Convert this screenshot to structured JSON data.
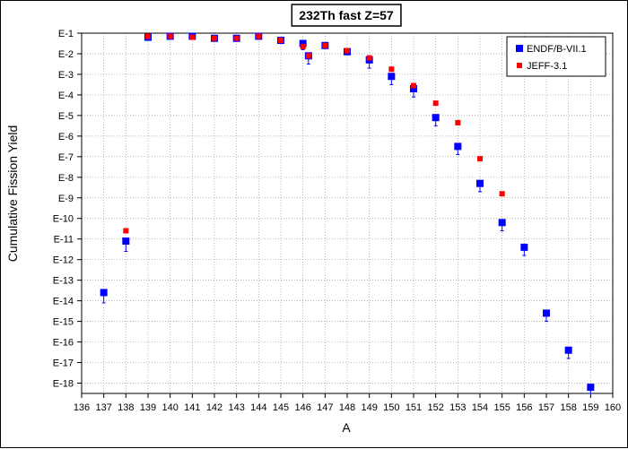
{
  "chart_data": {
    "type": "scatter",
    "title": "232Th fast Z=57",
    "xlabel": "A",
    "ylabel": "Cumulative Fission Yield",
    "xlim": [
      136,
      160
    ],
    "ylim_exponent": [
      -18.5,
      -1
    ],
    "y_scale": "log10",
    "x_ticks": [
      136,
      137,
      138,
      139,
      140,
      141,
      142,
      143,
      144,
      145,
      146,
      147,
      148,
      149,
      150,
      151,
      152,
      153,
      154,
      155,
      156,
      157,
      158,
      159,
      160
    ],
    "y_ticks": [
      {
        "exp": -1,
        "label": "E-1"
      },
      {
        "exp": -2,
        "label": "E-2"
      },
      {
        "exp": -3,
        "label": "E-3"
      },
      {
        "exp": -4,
        "label": "E-4"
      },
      {
        "exp": -5,
        "label": "E-5"
      },
      {
        "exp": -6,
        "label": "E-6"
      },
      {
        "exp": -7,
        "label": "E-7"
      },
      {
        "exp": -8,
        "label": "E-8"
      },
      {
        "exp": -9,
        "label": "E-9"
      },
      {
        "exp": -10,
        "label": "E-10"
      },
      {
        "exp": -11,
        "label": "E-11"
      },
      {
        "exp": -12,
        "label": "E-12"
      },
      {
        "exp": -13,
        "label": "E-13"
      },
      {
        "exp": -14,
        "label": "E-14"
      },
      {
        "exp": -15,
        "label": "E-15"
      },
      {
        "exp": -16,
        "label": "E-16"
      },
      {
        "exp": -17,
        "label": "E-17"
      },
      {
        "exp": -18,
        "label": "E-18"
      }
    ],
    "grid": true,
    "legend_position": "top-right",
    "series": [
      {
        "name": "ENDF/B-VII.1",
        "color": "#0000ff",
        "marker": "square",
        "points": [
          {
            "x": 137,
            "y_exp": -13.6,
            "err_exp": 0.5
          },
          {
            "x": 138,
            "y_exp": -11.1,
            "err_exp": 0.5
          },
          {
            "x": 139,
            "y_exp": -1.2,
            "err_exp": 0.1
          },
          {
            "x": 140,
            "y_exp": -1.15,
            "err_exp": 0.1
          },
          {
            "x": 141,
            "y_exp": -1.15,
            "err_exp": 0.1
          },
          {
            "x": 142,
            "y_exp": -1.25,
            "err_exp": 0.1
          },
          {
            "x": 143,
            "y_exp": -1.25,
            "err_exp": 0.1
          },
          {
            "x": 144,
            "y_exp": -1.15,
            "err_exp": 0.1
          },
          {
            "x": 145,
            "y_exp": -1.35,
            "err_exp": 0.1
          },
          {
            "x": 146,
            "y_exp": -1.5,
            "err_exp": 0.3
          },
          {
            "x": 146.25,
            "y_exp": -2.1,
            "err_exp": 0.4
          },
          {
            "x": 147,
            "y_exp": -1.6,
            "err_exp": 0.1
          },
          {
            "x": 148,
            "y_exp": -1.9,
            "err_exp": 0.15
          },
          {
            "x": 149,
            "y_exp": -2.3,
            "err_exp": 0.4
          },
          {
            "x": 150,
            "y_exp": -3.1,
            "err_exp": 0.4
          },
          {
            "x": 151,
            "y_exp": -3.7,
            "err_exp": 0.4
          },
          {
            "x": 152,
            "y_exp": -5.1,
            "err_exp": 0.4
          },
          {
            "x": 153,
            "y_exp": -6.5,
            "err_exp": 0.4
          },
          {
            "x": 154,
            "y_exp": -8.3,
            "err_exp": 0.4
          },
          {
            "x": 155,
            "y_exp": -10.2,
            "err_exp": 0.4
          },
          {
            "x": 156,
            "y_exp": -11.4,
            "err_exp": 0.4
          },
          {
            "x": 157,
            "y_exp": -14.6,
            "err_exp": 0.4
          },
          {
            "x": 158,
            "y_exp": -16.4,
            "err_exp": 0.4
          },
          {
            "x": 159,
            "y_exp": -18.2,
            "err_exp": 0.3
          }
        ]
      },
      {
        "name": "JEFF-3.1",
        "color": "#ff0000",
        "marker": "square",
        "points": [
          {
            "x": 138,
            "y_exp": -10.6
          },
          {
            "x": 139,
            "y_exp": -1.15
          },
          {
            "x": 140,
            "y_exp": -1.15
          },
          {
            "x": 141,
            "y_exp": -1.2
          },
          {
            "x": 142,
            "y_exp": -1.25
          },
          {
            "x": 143,
            "y_exp": -1.25
          },
          {
            "x": 144,
            "y_exp": -1.15
          },
          {
            "x": 145,
            "y_exp": -1.35
          },
          {
            "x": 146,
            "y_exp": -1.65
          },
          {
            "x": 146.25,
            "y_exp": -2.1
          },
          {
            "x": 147,
            "y_exp": -1.6
          },
          {
            "x": 148,
            "y_exp": -1.85
          },
          {
            "x": 149,
            "y_exp": -2.2
          },
          {
            "x": 150,
            "y_exp": -2.75
          },
          {
            "x": 151,
            "y_exp": -3.55
          },
          {
            "x": 152,
            "y_exp": -4.4
          },
          {
            "x": 153,
            "y_exp": -5.35
          },
          {
            "x": 154,
            "y_exp": -7.1
          },
          {
            "x": 155,
            "y_exp": -8.8
          }
        ]
      }
    ]
  }
}
